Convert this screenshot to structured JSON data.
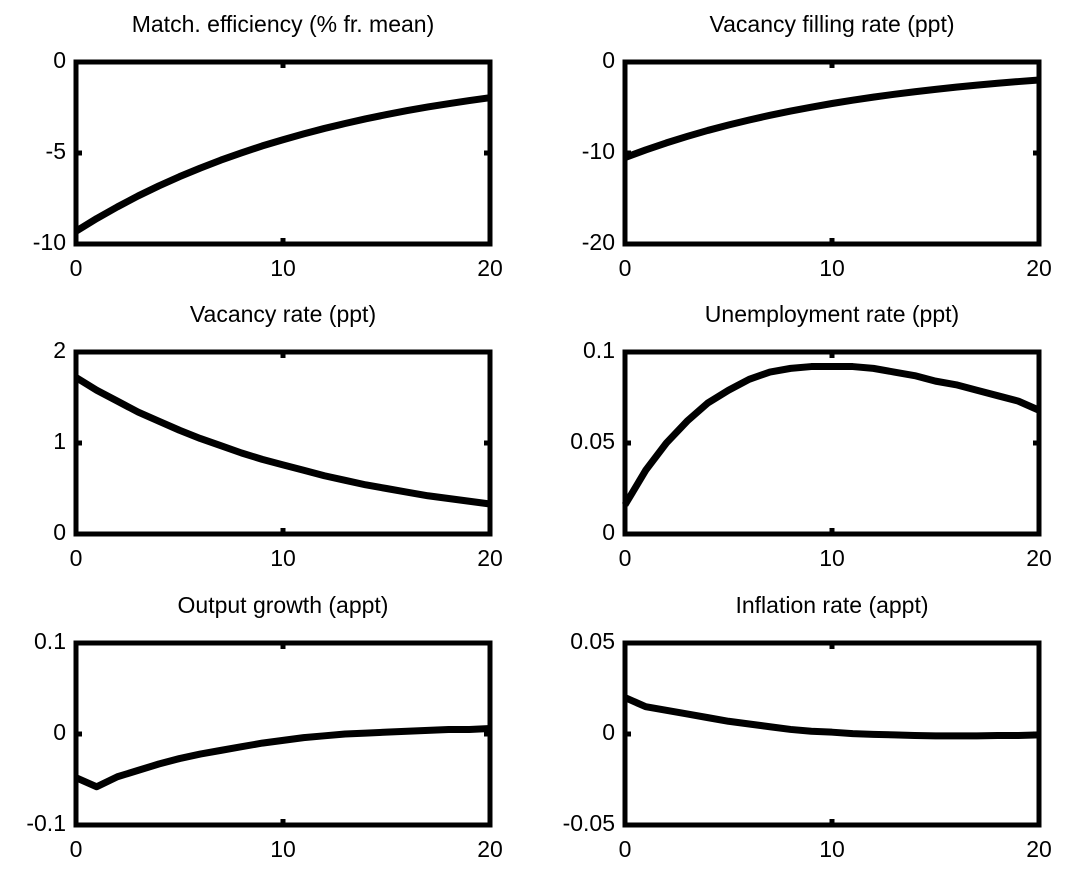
{
  "chart_data": [
    {
      "type": "line",
      "title": "Match. efficiency (% fr. mean)",
      "color": "#000000",
      "x": [
        0,
        1,
        2,
        3,
        4,
        5,
        6,
        7,
        8,
        9,
        10,
        11,
        12,
        13,
        14,
        15,
        16,
        17,
        18,
        19,
        20
      ],
      "values": [
        -9.3,
        -8.6,
        -7.96,
        -7.36,
        -6.81,
        -6.3,
        -5.83,
        -5.39,
        -4.99,
        -4.61,
        -4.27,
        -3.95,
        -3.65,
        -3.38,
        -3.12,
        -2.89,
        -2.67,
        -2.47,
        -2.29,
        -2.12,
        -1.96
      ],
      "xlim": [
        0,
        20
      ],
      "xticks": [
        0,
        10,
        20
      ],
      "ylim": [
        -10,
        0
      ],
      "yticks": [
        -10,
        -5,
        0
      ]
    },
    {
      "type": "line",
      "title": "Vacancy filling rate (ppt)",
      "color": "#000000",
      "x": [
        0,
        1,
        2,
        3,
        4,
        5,
        6,
        7,
        8,
        9,
        10,
        11,
        12,
        13,
        14,
        15,
        16,
        17,
        18,
        19,
        20
      ],
      "values": [
        -10.5,
        -9.66,
        -8.89,
        -8.18,
        -7.52,
        -6.92,
        -6.37,
        -5.86,
        -5.39,
        -4.96,
        -4.56,
        -4.2,
        -3.86,
        -3.55,
        -3.27,
        -3.01,
        -2.76,
        -2.54,
        -2.34,
        -2.15,
        -1.98
      ],
      "xlim": [
        0,
        20
      ],
      "xticks": [
        0,
        10,
        20
      ],
      "ylim": [
        -20,
        0
      ],
      "yticks": [
        -20,
        -10,
        0
      ]
    },
    {
      "type": "line",
      "title": "Vacancy rate (ppt)",
      "color": "#000000",
      "x": [
        0,
        1,
        2,
        3,
        4,
        5,
        6,
        7,
        8,
        9,
        10,
        11,
        12,
        13,
        14,
        15,
        16,
        17,
        18,
        19,
        20
      ],
      "values": [
        1.72,
        1.58,
        1.46,
        1.34,
        1.24,
        1.14,
        1.05,
        0.97,
        0.89,
        0.82,
        0.76,
        0.7,
        0.64,
        0.59,
        0.54,
        0.5,
        0.46,
        0.42,
        0.39,
        0.36,
        0.33
      ],
      "xlim": [
        0,
        20
      ],
      "xticks": [
        0,
        10,
        20
      ],
      "ylim": [
        0,
        2
      ],
      "yticks": [
        0,
        1,
        2
      ]
    },
    {
      "type": "line",
      "title": "Unemployment rate (ppt)",
      "color": "#000000",
      "x": [
        0,
        1,
        2,
        3,
        4,
        5,
        6,
        7,
        8,
        9,
        10,
        11,
        12,
        13,
        14,
        15,
        16,
        17,
        18,
        19,
        20
      ],
      "values": [
        0.016,
        0.035,
        0.05,
        0.062,
        0.072,
        0.079,
        0.085,
        0.089,
        0.091,
        0.092,
        0.092,
        0.092,
        0.091,
        0.089,
        0.087,
        0.084,
        0.082,
        0.079,
        0.076,
        0.073,
        0.068
      ],
      "xlim": [
        0,
        20
      ],
      "xticks": [
        0,
        10,
        20
      ],
      "ylim": [
        0,
        0.1
      ],
      "yticks": [
        0,
        0.05,
        0.1
      ]
    },
    {
      "type": "line",
      "title": "Output growth (appt)",
      "color": "#000000",
      "x": [
        0,
        1,
        2,
        3,
        4,
        5,
        6,
        7,
        8,
        9,
        10,
        11,
        12,
        13,
        14,
        15,
        16,
        17,
        18,
        19,
        20
      ],
      "values": [
        -0.048,
        -0.058,
        -0.047,
        -0.04,
        -0.033,
        -0.027,
        -0.022,
        -0.018,
        -0.014,
        -0.01,
        -0.007,
        -0.004,
        -0.002,
        0.0,
        0.001,
        0.002,
        0.003,
        0.004,
        0.005,
        0.005,
        0.006
      ],
      "xlim": [
        0,
        20
      ],
      "xticks": [
        0,
        10,
        20
      ],
      "ylim": [
        -0.1,
        0.1
      ],
      "yticks": [
        -0.1,
        0,
        0.1
      ]
    },
    {
      "type": "line",
      "title": "Inflation rate (appt)",
      "color": "#000000",
      "x": [
        0,
        1,
        2,
        3,
        4,
        5,
        6,
        7,
        8,
        9,
        10,
        11,
        12,
        13,
        14,
        15,
        16,
        17,
        18,
        19,
        20
      ],
      "values": [
        0.02,
        0.015,
        0.013,
        0.011,
        0.009,
        0.007,
        0.0055,
        0.004,
        0.0025,
        0.0015,
        0.001,
        0.0002,
        -0.0002,
        -0.0005,
        -0.0008,
        -0.001,
        -0.001,
        -0.001,
        -0.0008,
        -0.0008,
        -0.0005
      ],
      "xlim": [
        0,
        20
      ],
      "xticks": [
        0,
        10,
        20
      ],
      "ylim": [
        -0.05,
        0.05
      ],
      "yticks": [
        -0.05,
        0,
        0.05
      ]
    }
  ]
}
